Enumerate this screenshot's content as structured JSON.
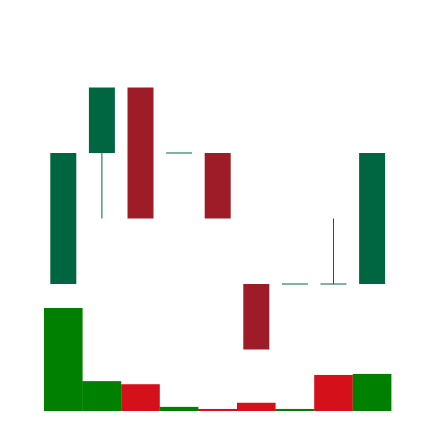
{
  "chart_data": {
    "type": "candlestick",
    "title": "",
    "xlabel": "",
    "ylabel": "",
    "grid": false,
    "legend": "none",
    "price": {
      "ylim": [
        0,
        6
      ],
      "candles": [
        {
          "open": 2,
          "high": 4,
          "low": 2,
          "close": 4
        },
        {
          "open": 4,
          "high": 5,
          "low": 3,
          "close": 5
        },
        {
          "open": 5,
          "high": 5,
          "low": 3,
          "close": 3
        },
        {
          "open": 4,
          "high": 4,
          "low": 4,
          "close": 4
        },
        {
          "open": 4,
          "high": 4,
          "low": 3,
          "close": 3
        },
        {
          "open": 2,
          "high": 2,
          "low": 1,
          "close": 1
        },
        {
          "open": 2,
          "high": 2,
          "low": 2,
          "close": 2
        },
        {
          "open": 2,
          "high": 3,
          "low": 2,
          "close": 2
        },
        {
          "open": 2,
          "high": 4,
          "low": 2,
          "close": 4
        }
      ]
    },
    "volume": {
      "ylim": [
        0,
        110
      ],
      "values": [
        100,
        29,
        26,
        4,
        2,
        8,
        2,
        35,
        36
      ],
      "bar_colors": [
        "up",
        "up",
        "down",
        "up",
        "down",
        "down",
        "up",
        "down",
        "up"
      ]
    },
    "colors": {
      "candle_up": "#006641",
      "candle_down": "#9e1c28",
      "volume_up": "#008000",
      "volume_down": "#d4111b"
    }
  }
}
